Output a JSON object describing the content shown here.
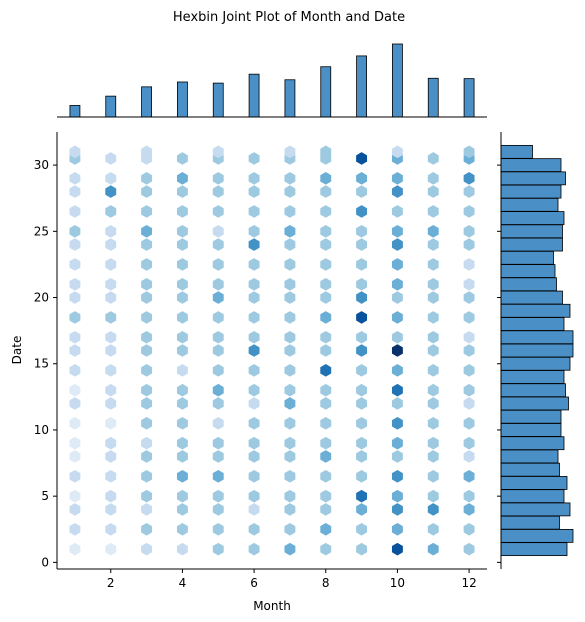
{
  "colors": {
    "hex_scale": [
      "#f7fbff",
      "#deebf7",
      "#c6dbef",
      "#9ecae1",
      "#6baed6",
      "#4292c6",
      "#2171b5",
      "#08519c",
      "#08306b"
    ],
    "bar_fill": "#4a8fc6",
    "bar_edge": "#000000"
  },
  "chart_data": {
    "type": "hexbin",
    "title": "Hexbin Joint Plot of Month and Date",
    "xlabel": "Month",
    "ylabel": "Date",
    "xlim": [
      0.5,
      12.5
    ],
    "ylim": [
      -0.5,
      32.5
    ],
    "xticks": [
      2,
      4,
      6,
      8,
      10,
      12
    ],
    "yticks": [
      0,
      5,
      10,
      15,
      20,
      25,
      30
    ],
    "grid": false,
    "months": [
      1,
      2,
      3,
      4,
      5,
      6,
      7,
      8,
      9,
      10,
      11,
      12
    ],
    "date_rows": [
      1,
      2.5,
      4,
      5,
      6.5,
      8,
      9,
      10.5,
      12,
      13,
      14.5,
      16,
      17,
      18.5,
      20,
      21,
      22.5,
      24,
      25,
      26.5,
      28,
      29,
      30.5,
      31
    ],
    "hex_counts": [
      [
        1,
        1,
        2,
        2,
        3,
        3,
        4,
        3,
        3,
        7,
        4,
        3
      ],
      [
        2,
        2,
        3,
        3,
        3,
        3,
        3,
        4,
        3,
        4,
        3,
        3
      ],
      [
        2,
        2,
        2,
        3,
        3,
        2,
        3,
        3,
        4,
        5,
        5,
        4
      ],
      [
        1,
        2,
        3,
        3,
        3,
        3,
        3,
        3,
        6,
        4,
        3,
        3
      ],
      [
        2,
        2,
        3,
        4,
        4,
        3,
        3,
        3,
        3,
        5,
        3,
        4
      ],
      [
        1,
        2,
        3,
        3,
        3,
        3,
        3,
        4,
        3,
        3,
        3,
        2
      ],
      [
        1,
        2,
        2,
        3,
        3,
        3,
        3,
        3,
        3,
        4,
        3,
        3
      ],
      [
        1,
        1,
        3,
        3,
        2,
        3,
        3,
        3,
        3,
        5,
        3,
        3
      ],
      [
        2,
        2,
        3,
        3,
        3,
        2,
        4,
        3,
        3,
        3,
        3,
        2
      ],
      [
        1,
        2,
        3,
        3,
        4,
        3,
        3,
        3,
        3,
        6,
        3,
        3
      ],
      [
        2,
        2,
        3,
        2,
        3,
        3,
        3,
        6,
        3,
        4,
        3,
        3
      ],
      [
        2,
        2,
        3,
        3,
        3,
        5,
        3,
        3,
        5,
        8,
        3,
        3
      ],
      [
        2,
        2,
        3,
        3,
        3,
        3,
        3,
        3,
        3,
        3,
        3,
        2
      ],
      [
        3,
        3,
        3,
        3,
        3,
        3,
        3,
        4,
        7,
        4,
        3,
        3
      ],
      [
        2,
        2,
        3,
        3,
        4,
        3,
        3,
        3,
        5,
        3,
        3,
        3
      ],
      [
        2,
        2,
        3,
        3,
        3,
        3,
        3,
        3,
        3,
        4,
        3,
        2
      ],
      [
        2,
        2,
        3,
        3,
        3,
        3,
        3,
        3,
        3,
        4,
        3,
        2
      ],
      [
        2,
        2,
        3,
        3,
        3,
        5,
        3,
        3,
        3,
        5,
        3,
        3
      ],
      [
        3,
        2,
        4,
        3,
        2,
        3,
        4,
        3,
        3,
        4,
        4,
        3
      ],
      [
        2,
        3,
        3,
        3,
        3,
        3,
        3,
        3,
        5,
        3,
        3,
        3
      ],
      [
        2,
        5,
        3,
        3,
        3,
        3,
        3,
        3,
        3,
        5,
        3,
        3
      ],
      [
        2,
        2,
        3,
        4,
        3,
        3,
        3,
        4,
        4,
        4,
        3,
        5
      ],
      [
        3,
        2,
        2,
        3,
        3,
        3,
        3,
        3,
        7,
        4,
        3,
        4
      ],
      [
        2,
        0,
        2,
        0,
        2,
        0,
        2,
        3,
        0,
        2,
        0,
        3
      ]
    ],
    "marginal_x": {
      "categories": [
        1,
        2,
        3,
        4,
        5,
        6,
        7,
        8,
        9,
        10,
        11,
        12
      ],
      "values": [
        31,
        56,
        81,
        94,
        91,
        115,
        100,
        135,
        164,
        196,
        104,
        103
      ]
    },
    "marginal_y": {
      "dates": [
        1,
        2,
        3,
        4,
        5,
        6,
        7,
        8,
        9,
        10,
        11,
        12,
        13,
        14,
        15,
        16,
        17,
        18,
        19,
        20,
        21,
        22,
        23,
        24,
        25,
        26,
        27,
        28,
        29,
        30,
        31
      ],
      "values": [
        88,
        96,
        78,
        92,
        84,
        88,
        78,
        76,
        84,
        80,
        80,
        90,
        86,
        84,
        92,
        96,
        96,
        84,
        92,
        82,
        74,
        72,
        70,
        82,
        82,
        84,
        76,
        80,
        86,
        80,
        42
      ]
    }
  }
}
